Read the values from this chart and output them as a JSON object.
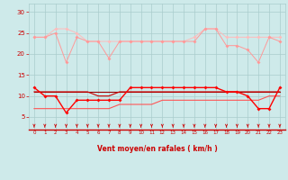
{
  "x": [
    0,
    1,
    2,
    3,
    4,
    5,
    6,
    7,
    8,
    9,
    10,
    11,
    12,
    13,
    14,
    15,
    16,
    17,
    18,
    19,
    20,
    21,
    22,
    23
  ],
  "line1": [
    24,
    24,
    25,
    18,
    24,
    23,
    23,
    19,
    23,
    23,
    23,
    23,
    23,
    23,
    23,
    23,
    26,
    26,
    22,
    22,
    21,
    18,
    24,
    23
  ],
  "line2": [
    24,
    24,
    26,
    26,
    25,
    23,
    23,
    23,
    23,
    23,
    23,
    23,
    23,
    23,
    23,
    24,
    26,
    26,
    24,
    24,
    24,
    24,
    24,
    24
  ],
  "line3": [
    12,
    10,
    10,
    6,
    9,
    9,
    9,
    9,
    9,
    12,
    12,
    12,
    12,
    12,
    12,
    12,
    12,
    12,
    11,
    11,
    10,
    7,
    7,
    12
  ],
  "line4": [
    11,
    11,
    11,
    11,
    11,
    11,
    10,
    10,
    11,
    11,
    11,
    11,
    11,
    11,
    11,
    11,
    11,
    11,
    11,
    11,
    11,
    11,
    11,
    11
  ],
  "line5_slope": [
    7,
    7,
    7,
    7,
    7,
    7,
    7,
    7,
    8,
    8,
    8,
    8,
    9,
    9,
    9,
    9,
    9,
    9,
    9,
    9,
    9,
    9,
    10,
    10
  ],
  "line6_flat": [
    11,
    11,
    11,
    11,
    11,
    11,
    11,
    11,
    11,
    11,
    11,
    11,
    11,
    11,
    11,
    11,
    11,
    11,
    11,
    11,
    11,
    11,
    11,
    11
  ],
  "bg_color": "#ceeaea",
  "grid_color": "#aacccc",
  "line1_color": "#ff9999",
  "line2_color": "#ffbbbb",
  "line3_color": "#ff0000",
  "line4_color": "#cc0000",
  "line5_color": "#ff5555",
  "line6_color": "#990000",
  "xlabel": "Vent moyen/en rafales ( km/h )",
  "xlabel_color": "#cc0000",
  "tick_color": "#cc0000",
  "arrow_color": "#cc0000",
  "hline_color": "#cc0000",
  "ylim": [
    2,
    32
  ],
  "xlim": [
    -0.5,
    23.5
  ],
  "yticks": [
    5,
    10,
    15,
    20,
    25,
    30
  ],
  "xticks": [
    0,
    1,
    2,
    3,
    4,
    5,
    6,
    7,
    8,
    9,
    10,
    11,
    12,
    13,
    14,
    15,
    16,
    17,
    18,
    19,
    20,
    21,
    22,
    23
  ]
}
